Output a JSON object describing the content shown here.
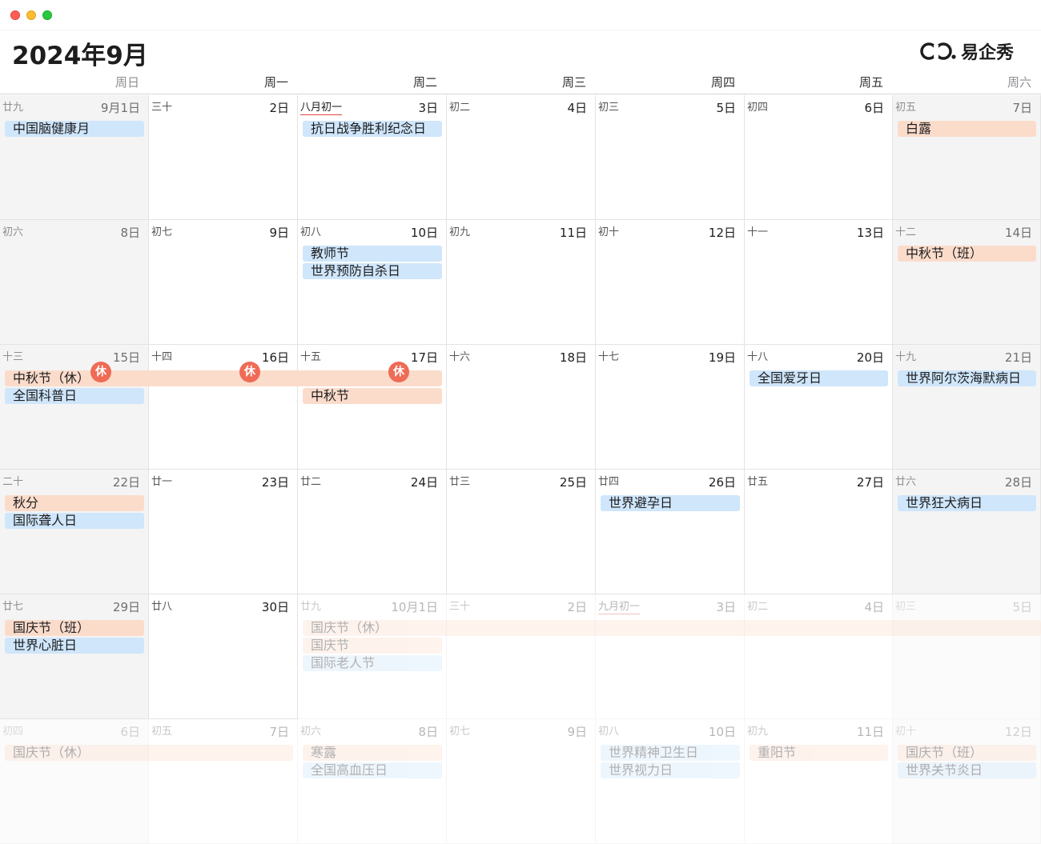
{
  "window": {
    "controls": [
      "close",
      "minimize",
      "zoom"
    ]
  },
  "header": {
    "title": "2024年9月",
    "brand": "易企秀"
  },
  "weekdays": [
    "周日",
    "周一",
    "周二",
    "周三",
    "周四",
    "周五",
    "周六"
  ],
  "weeks": [
    [
      {
        "lunar": "廿九",
        "day": "9月1日"
      },
      {
        "lunar": "三十",
        "day": "2日"
      },
      {
        "lunar": "八月初一",
        "day": "3日",
        "first": true
      },
      {
        "lunar": "初二",
        "day": "4日"
      },
      {
        "lunar": "初三",
        "day": "5日"
      },
      {
        "lunar": "初四",
        "day": "6日"
      },
      {
        "lunar": "初五",
        "day": "7日"
      }
    ],
    [
      {
        "lunar": "初六",
        "day": "8日"
      },
      {
        "lunar": "初七",
        "day": "9日"
      },
      {
        "lunar": "初八",
        "day": "10日"
      },
      {
        "lunar": "初九",
        "day": "11日"
      },
      {
        "lunar": "初十",
        "day": "12日"
      },
      {
        "lunar": "十一",
        "day": "13日"
      },
      {
        "lunar": "十二",
        "day": "14日"
      }
    ],
    [
      {
        "lunar": "十三",
        "day": "15日"
      },
      {
        "lunar": "十四",
        "day": "16日"
      },
      {
        "lunar": "十五",
        "day": "17日"
      },
      {
        "lunar": "十六",
        "day": "18日"
      },
      {
        "lunar": "十七",
        "day": "19日"
      },
      {
        "lunar": "十八",
        "day": "20日"
      },
      {
        "lunar": "十九",
        "day": "21日"
      }
    ],
    [
      {
        "lunar": "二十",
        "day": "22日"
      },
      {
        "lunar": "廿一",
        "day": "23日"
      },
      {
        "lunar": "廿二",
        "day": "24日"
      },
      {
        "lunar": "廿三",
        "day": "25日"
      },
      {
        "lunar": "廿四",
        "day": "26日"
      },
      {
        "lunar": "廿五",
        "day": "27日"
      },
      {
        "lunar": "廿六",
        "day": "28日"
      }
    ],
    [
      {
        "lunar": "廿七",
        "day": "29日"
      },
      {
        "lunar": "廿八",
        "day": "30日"
      },
      {
        "lunar": "廿九",
        "day": "10月1日",
        "faded": true
      },
      {
        "lunar": "三十",
        "day": "2日",
        "faded": true
      },
      {
        "lunar": "九月初一",
        "day": "3日",
        "faded": true,
        "first": true
      },
      {
        "lunar": "初二",
        "day": "4日",
        "faded": true
      },
      {
        "lunar": "初三",
        "day": "5日",
        "faded": true
      }
    ],
    [
      {
        "lunar": "初四",
        "day": "6日",
        "faded": true
      },
      {
        "lunar": "初五",
        "day": "7日",
        "faded": true
      },
      {
        "lunar": "初六",
        "day": "8日",
        "faded": true
      },
      {
        "lunar": "初七",
        "day": "9日",
        "faded": true
      },
      {
        "lunar": "初八",
        "day": "10日",
        "faded": true
      },
      {
        "lunar": "初九",
        "day": "11日",
        "faded": true
      },
      {
        "lunar": "初十",
        "day": "12日",
        "faded": true
      }
    ]
  ],
  "events": [
    {
      "label": "中国脑健康月",
      "color": "blue",
      "week": 0,
      "col": 0,
      "span": 1,
      "slot": 0
    },
    {
      "label": "抗日战争胜利纪念日",
      "color": "blue",
      "week": 0,
      "col": 2,
      "span": 1,
      "slot": 0
    },
    {
      "label": "白露",
      "color": "orange",
      "week": 0,
      "col": 6,
      "span": 1,
      "slot": 0
    },
    {
      "label": "教师节",
      "color": "blue",
      "week": 1,
      "col": 2,
      "span": 1,
      "slot": 0
    },
    {
      "label": "世界预防自杀日",
      "color": "blue",
      "week": 1,
      "col": 2,
      "span": 1,
      "slot": 1
    },
    {
      "label": "中秋节（班）",
      "color": "orange",
      "week": 1,
      "col": 6,
      "span": 1,
      "slot": 0
    },
    {
      "label": "中秋节（休）",
      "color": "orange",
      "week": 2,
      "col": 0,
      "span": 3,
      "slot": 0
    },
    {
      "label": "全国科普日",
      "color": "blue",
      "week": 2,
      "col": 0,
      "span": 1,
      "slot": 1
    },
    {
      "label": "中秋节",
      "color": "orange",
      "week": 2,
      "col": 2,
      "span": 1,
      "slot": 1
    },
    {
      "label": "全国爱牙日",
      "color": "blue",
      "week": 2,
      "col": 5,
      "span": 1,
      "slot": 0
    },
    {
      "label": "世界阿尔茨海默病日",
      "color": "blue",
      "week": 2,
      "col": 6,
      "span": 1,
      "slot": 0
    },
    {
      "label": "秋分",
      "color": "orange",
      "week": 3,
      "col": 0,
      "span": 1,
      "slot": 0
    },
    {
      "label": "国际聋人日",
      "color": "blue",
      "week": 3,
      "col": 0,
      "span": 1,
      "slot": 1
    },
    {
      "label": "世界避孕日",
      "color": "blue",
      "week": 3,
      "col": 4,
      "span": 1,
      "slot": 0
    },
    {
      "label": "世界狂犬病日",
      "color": "blue",
      "week": 3,
      "col": 6,
      "span": 1,
      "slot": 0
    },
    {
      "label": "国庆节（班）",
      "color": "orange",
      "week": 4,
      "col": 0,
      "span": 1,
      "slot": 0
    },
    {
      "label": "世界心脏日",
      "color": "blue",
      "week": 4,
      "col": 0,
      "span": 1,
      "slot": 1
    },
    {
      "label": "国庆节（休）",
      "color": "orange",
      "week": 4,
      "col": 2,
      "span": 5,
      "slot": 0,
      "faded": true
    },
    {
      "label": "国庆节",
      "color": "orange",
      "week": 4,
      "col": 2,
      "span": 1,
      "slot": 1,
      "faded": true
    },
    {
      "label": "国际老人节",
      "color": "blue",
      "week": 4,
      "col": 2,
      "span": 1,
      "slot": 2,
      "faded": true
    },
    {
      "label": "国庆节（休）",
      "color": "orange",
      "week": 5,
      "col": 0,
      "span": 2,
      "slot": 0,
      "faded": true
    },
    {
      "label": "寒露",
      "color": "orange",
      "week": 5,
      "col": 2,
      "span": 1,
      "slot": 0,
      "faded": true
    },
    {
      "label": "全国高血压日",
      "color": "blue",
      "week": 5,
      "col": 2,
      "span": 1,
      "slot": 1,
      "faded": true
    },
    {
      "label": "世界精神卫生日",
      "color": "blue",
      "week": 5,
      "col": 4,
      "span": 1,
      "slot": 0,
      "faded": true
    },
    {
      "label": "世界视力日",
      "color": "blue",
      "week": 5,
      "col": 4,
      "span": 1,
      "slot": 1,
      "faded": true
    },
    {
      "label": "重阳节",
      "color": "orange",
      "week": 5,
      "col": 5,
      "span": 1,
      "slot": 0,
      "faded": true
    },
    {
      "label": "国庆节（班）",
      "color": "orange",
      "week": 5,
      "col": 6,
      "span": 1,
      "slot": 0,
      "faded": true
    },
    {
      "label": "世界关节炎日",
      "color": "blue",
      "week": 5,
      "col": 6,
      "span": 1,
      "slot": 1,
      "faded": true
    }
  ],
  "rest_badges": [
    {
      "label": "休",
      "week": 2,
      "col": 0
    },
    {
      "label": "休",
      "week": 2,
      "col": 1
    },
    {
      "label": "休",
      "week": 2,
      "col": 2
    }
  ],
  "colors": {
    "blue_event": "#cfe6fb",
    "orange_event": "#fbdccb",
    "rest_badge": "#ef6b56"
  }
}
